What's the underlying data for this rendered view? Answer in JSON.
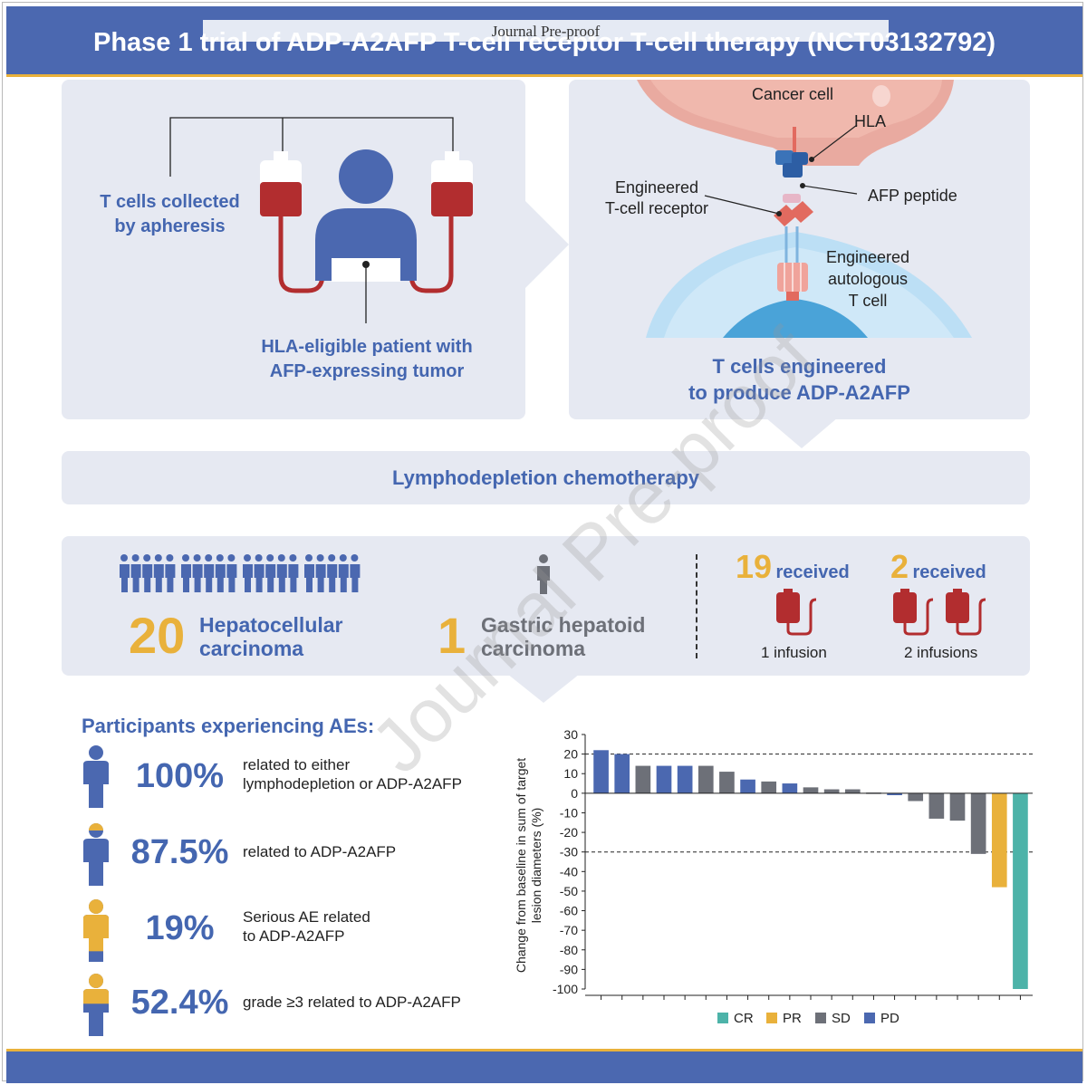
{
  "header": {
    "title": "Phase 1 trial of ADP-A2AFP T-cell receptor T-cell therapy (NCT03132792)",
    "banner": "Journal Pre-proof"
  },
  "watermark": "Journal Pre-proof",
  "panel_collection": {
    "tcells_label_1": "T cells collected",
    "tcells_label_2": "by apheresis",
    "patient_label_1": "HLA-eligible patient with",
    "patient_label_2": "AFP-expressing tumor"
  },
  "panel_engineering": {
    "cancer_cell": "Cancer cell",
    "hla": "HLA",
    "afp_peptide": "AFP peptide",
    "tcr_1": "Engineered",
    "tcr_2": "T-cell receptor",
    "tcell_1": "Engineered",
    "tcell_2": "autologous",
    "tcell_3": "T cell",
    "caption_1": "T cells engineered",
    "caption_2": "to produce ADP-A2AFP"
  },
  "lymphodepletion": "Lymphodepletion chemotherapy",
  "cohort": {
    "hcc_count": "20",
    "hcc_label_1": "Hepatocellular",
    "hcc_label_2": "carcinoma",
    "ghc_count": "1",
    "ghc_label_1": "Gastric hepatoid",
    "ghc_label_2": "carcinoma",
    "one_inf_count": "19",
    "one_inf_received": "received",
    "one_inf_label": "1 infusion",
    "two_inf_count": "2",
    "two_inf_received": "received",
    "two_inf_label": "2 infusions"
  },
  "aes": {
    "heading": "Participants experiencing AEs:",
    "items": [
      {
        "pct": "100%",
        "desc_1": "related to either",
        "desc_2": "lymphodepletion or ADP-A2AFP",
        "fraction": 1.0
      },
      {
        "pct": "87.5%",
        "desc_1": "related to ADP-A2AFP",
        "desc_2": "",
        "fraction": 0.875
      },
      {
        "pct": "19%",
        "desc_1": "Serious AE related",
        "desc_2": "to ADP-A2AFP",
        "fraction": 0.19
      },
      {
        "pct": "52.4%",
        "desc_1": "grade ≥3 related to ADP-A2AFP",
        "desc_2": "",
        "fraction": 0.524
      }
    ]
  },
  "colors": {
    "blue": "#4b68b0",
    "orange": "#e9b13b",
    "gray": "#6d7078",
    "teal": "#4db3a9",
    "red": "#b22d2f",
    "panel": "#e6e9f2"
  },
  "chart_data": {
    "type": "bar",
    "title": "",
    "xlabel": "",
    "ylabel": "Change from baseline in sum of target lesion diameters (%)",
    "ylim": [
      -100,
      30
    ],
    "yticks": [
      "30",
      "20",
      "10",
      "0",
      "-10",
      "-20",
      "-30",
      "-40",
      "-50",
      "-60",
      "-70",
      "-80",
      "-90",
      "-100"
    ],
    "reference_lines": [
      20,
      -30
    ],
    "legend": [
      {
        "name": "CR",
        "color": "#4db3a9"
      },
      {
        "name": "PR",
        "color": "#e9b13b"
      },
      {
        "name": "SD",
        "color": "#6d7078"
      },
      {
        "name": "PD",
        "color": "#4b68b0"
      }
    ],
    "bars": [
      {
        "value": 22,
        "response": "PD"
      },
      {
        "value": 20,
        "response": "PD"
      },
      {
        "value": 14,
        "response": "SD"
      },
      {
        "value": 14,
        "response": "PD"
      },
      {
        "value": 14,
        "response": "PD"
      },
      {
        "value": 14,
        "response": "SD"
      },
      {
        "value": 11,
        "response": "SD"
      },
      {
        "value": 7,
        "response": "PD"
      },
      {
        "value": 6,
        "response": "SD"
      },
      {
        "value": 5,
        "response": "PD"
      },
      {
        "value": 3,
        "response": "SD"
      },
      {
        "value": 2,
        "response": "SD"
      },
      {
        "value": 2,
        "response": "SD"
      },
      {
        "value": 0,
        "response": "SD"
      },
      {
        "value": -1,
        "response": "PD"
      },
      {
        "value": -4,
        "response": "SD"
      },
      {
        "value": -13,
        "response": "SD"
      },
      {
        "value": -14,
        "response": "SD"
      },
      {
        "value": -31,
        "response": "SD"
      },
      {
        "value": -48,
        "response": "PR"
      },
      {
        "value": -100,
        "response": "CR"
      }
    ]
  }
}
